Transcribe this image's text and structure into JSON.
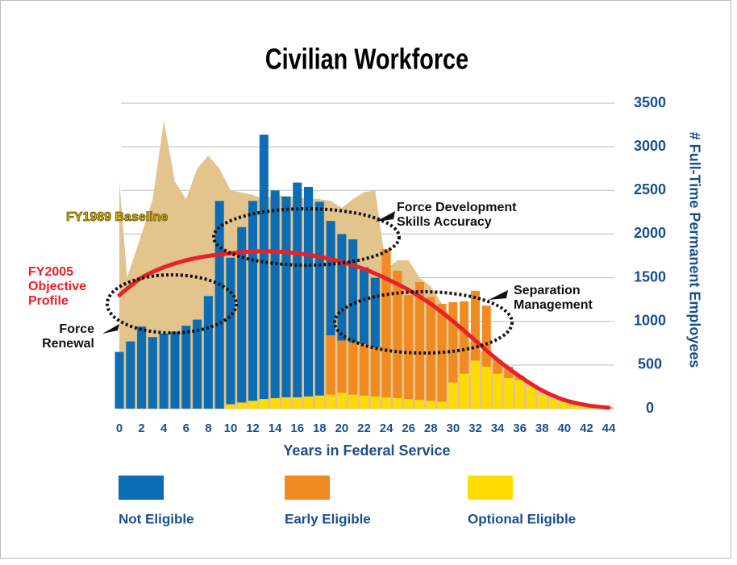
{
  "chart_data": {
    "type": "bar",
    "stacked": true,
    "title": "Civilian Workforce",
    "x_label": "Years in Federal Service",
    "y_label": "# Full-Time Permanent Employees",
    "x": [
      0,
      1,
      2,
      3,
      4,
      5,
      6,
      7,
      8,
      9,
      10,
      11,
      12,
      13,
      14,
      15,
      16,
      17,
      18,
      19,
      20,
      21,
      22,
      23,
      24,
      25,
      26,
      27,
      28,
      29,
      30,
      31,
      32,
      33,
      34,
      35,
      36,
      37,
      38,
      39,
      40,
      41,
      42,
      43,
      44
    ],
    "xlim": [
      0,
      44
    ],
    "xticks": [
      0,
      2,
      4,
      6,
      8,
      10,
      12,
      14,
      16,
      18,
      20,
      22,
      24,
      26,
      28,
      30,
      32,
      34,
      36,
      38,
      40,
      42,
      44
    ],
    "ylim": [
      0,
      3500
    ],
    "yticks": [
      0,
      500,
      1000,
      1500,
      2000,
      2500,
      3000,
      3500
    ],
    "grid": true,
    "series": [
      {
        "name": "Not Eligible",
        "color": "#0c6db4",
        "values": [
          650,
          770,
          940,
          820,
          860,
          880,
          950,
          1020,
          1290,
          2380,
          1680,
          2010,
          2290,
          3030,
          2380,
          2300,
          2460,
          2400,
          2220,
          1310,
          1220,
          1180,
          880,
          800,
          0,
          0,
          0,
          0,
          0,
          0,
          0,
          0,
          0,
          0,
          0,
          0,
          0,
          0,
          0,
          0,
          0,
          0,
          0,
          0,
          0
        ]
      },
      {
        "name": "Early Eligible",
        "color": "#f28a22",
        "values": [
          0,
          0,
          0,
          0,
          0,
          0,
          0,
          0,
          0,
          0,
          0,
          0,
          0,
          0,
          0,
          0,
          0,
          0,
          0,
          680,
          600,
          600,
          590,
          560,
          1700,
          1460,
          1190,
          1350,
          1190,
          1120,
          920,
          830,
          800,
          700,
          160,
          130,
          50,
          0,
          0,
          0,
          0,
          0,
          0,
          0,
          0
        ]
      },
      {
        "name": "Optional Eligible",
        "color": "#ffdc00",
        "values": [
          0,
          0,
          0,
          0,
          0,
          0,
          0,
          0,
          0,
          0,
          50,
          70,
          90,
          110,
          120,
          130,
          130,
          140,
          150,
          160,
          180,
          160,
          150,
          140,
          130,
          120,
          110,
          100,
          90,
          80,
          300,
          400,
          550,
          480,
          400,
          350,
          330,
          250,
          150,
          100,
          80,
          60,
          40,
          30,
          20
        ]
      }
    ],
    "lines": [
      {
        "kind": "area",
        "color": "#e2c48c",
        "x": [
          0,
          0.7,
          2,
          3,
          4,
          5,
          6,
          7,
          8,
          9,
          10,
          12,
          13,
          14,
          16,
          18,
          19,
          20,
          21,
          22,
          23,
          24,
          25,
          26,
          27,
          28,
          30,
          32,
          34,
          36,
          38,
          40,
          42,
          44
        ],
        "values": [
          2600,
          1500,
          2000,
          2400,
          3300,
          2600,
          2400,
          2750,
          2900,
          2750,
          2500,
          2450,
          2400,
          2450,
          2420,
          2400,
          2380,
          2300,
          2400,
          2480,
          2500,
          1600,
          1700,
          1700,
          1500,
          1400,
          1000,
          700,
          550,
          400,
          200,
          100,
          50,
          20
        ]
      },
      {
        "kind": "line",
        "color": "#e8202a",
        "x": [
          0,
          2,
          4,
          6,
          8,
          10,
          12,
          14,
          16,
          18,
          20,
          22,
          24,
          26,
          28,
          30,
          32,
          34,
          36,
          38,
          40,
          42,
          44
        ],
        "values": [
          1300,
          1500,
          1620,
          1700,
          1750,
          1780,
          1800,
          1800,
          1780,
          1740,
          1680,
          1600,
          1490,
          1360,
          1200,
          1000,
          780,
          560,
          370,
          210,
          100,
          40,
          10
        ]
      }
    ],
    "annotations": [
      {
        "lines": [
          "FY1989 Baseline"
        ],
        "color": "#d8b400"
      },
      {
        "lines": [
          "FY2005",
          "Objective",
          "Profile"
        ],
        "color": "#e8202a"
      },
      {
        "lines": [
          "Force",
          "Renewal"
        ],
        "color": "#111111"
      },
      {
        "lines": [
          "Force Development",
          "Skills Accuracy"
        ],
        "color": "#111111"
      },
      {
        "lines": [
          "Separation",
          "Management"
        ],
        "color": "#111111"
      }
    ]
  }
}
